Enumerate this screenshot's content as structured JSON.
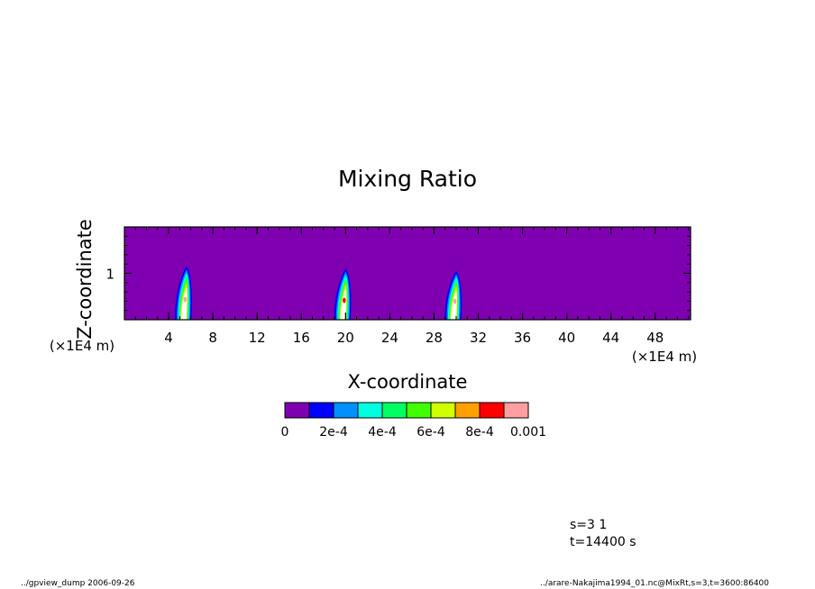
{
  "chart_data": {
    "type": "heatmap",
    "title": "Mixing Ratio",
    "xlabel": "X-coordinate",
    "ylabel": "Z-coordinate",
    "x_unit": "(×1E4 m)",
    "y_unit": "(×1E4 m)",
    "xlim": [
      0,
      51.2
    ],
    "ylim": [
      0,
      2
    ],
    "x_ticks": [
      "4",
      "8",
      "12",
      "16",
      "20",
      "24",
      "28",
      "32",
      "36",
      "40",
      "44",
      "48"
    ],
    "y_ticks": [
      "1"
    ],
    "background_color": "#7f00b0",
    "colorbar": {
      "colors": [
        "#7f00b0",
        "#0000ff",
        "#0090ff",
        "#00ffe0",
        "#00ff60",
        "#40ff00",
        "#d0ff00",
        "#ffa000",
        "#ff0000",
        "#ff9f9f"
      ],
      "labels": [
        "0",
        "2e-4",
        "4e-4",
        "6e-4",
        "8e-4",
        "0.001"
      ]
    },
    "plumes": [
      {
        "x": 5.4,
        "z_bottom": 0,
        "z_top": 1.15,
        "peak_level": 9
      },
      {
        "x": 19.8,
        "z_bottom": 0,
        "z_top": 1.1,
        "peak_level": 8
      },
      {
        "x": 29.8,
        "z_bottom": 0,
        "z_top": 1.05,
        "peak_level": 9
      }
    ]
  },
  "annotations": {
    "step": "s=3 1",
    "time": "t=14400 s"
  },
  "footer": {
    "left": "../gpview_dump  2006-09-26",
    "right": "../arare-Nakajima1994_01.nc@MixRt,s=3,t=3600:86400"
  }
}
